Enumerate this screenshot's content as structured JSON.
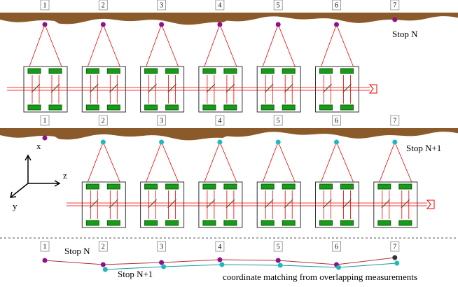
{
  "top_panel": {
    "stop_numbers": [
      "1",
      "2",
      "3",
      "4",
      "5",
      "6",
      "7"
    ],
    "label": "Stop N"
  },
  "middle_panel": {
    "stop_numbers": [
      "1",
      "2",
      "3",
      "4",
      "5",
      "6",
      "7"
    ],
    "label": "Stop N+1",
    "axes": {
      "x": "x",
      "z": "z",
      "y": "y"
    }
  },
  "bottom_panel": {
    "stop_numbers": [
      "1",
      "2",
      "3",
      "4",
      "5",
      "6",
      "7"
    ],
    "label_n": "Stop N",
    "label_n1": "Stop N+1",
    "caption": "coordinate matching from overlapping measurements"
  }
}
